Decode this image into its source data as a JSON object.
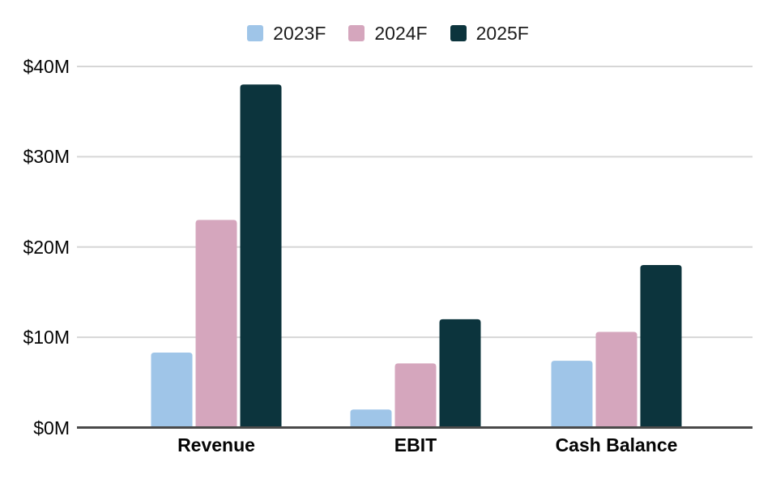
{
  "chart_data": {
    "type": "bar",
    "title": "",
    "xlabel": "",
    "ylabel": "",
    "categories": [
      "Revenue",
      "EBIT",
      "Cash Balance"
    ],
    "series": [
      {
        "name": "2023F",
        "color": "#9fc5e8",
        "values": [
          8.3,
          2.0,
          7.4
        ]
      },
      {
        "name": "2024F",
        "color": "#d5a6bd",
        "values": [
          23.0,
          7.1,
          10.6
        ]
      },
      {
        "name": "2025F",
        "color": "#0c343d",
        "values": [
          38.0,
          12.0,
          18.0
        ]
      }
    ],
    "value_unit": "$M",
    "ylim": [
      0,
      40
    ],
    "y_ticks": [
      "$40M",
      "$30M",
      "$20M",
      "$10M",
      "$0M"
    ],
    "y_tick_values": [
      40,
      30,
      20,
      10,
      0
    ],
    "legend_position": "top-center",
    "grid": "horizontal",
    "colors": {
      "background": "#ffffff",
      "gridline": "#d6d6d6",
      "axis_line": "#4a4a4a",
      "text": "#050505"
    }
  }
}
